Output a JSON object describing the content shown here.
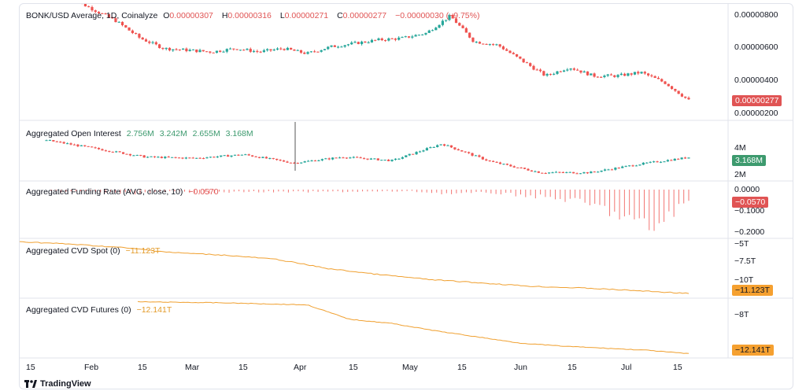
{
  "main_legend": {
    "symbol": "BONK/USD Average, 1D, Coinalyze",
    "O_label": "O",
    "O": "0.00000307",
    "H_label": "H",
    "H": "0.00000316",
    "L_label": "L",
    "L": "0.00000271",
    "C_label": "C",
    "C": "0.00000277",
    "change": "−0.00000030 (−9.75%)"
  },
  "oi_legend": {
    "title": "Aggregated Open Interest",
    "v1": "2.756M",
    "v2": "3.242M",
    "v3": "2.655M",
    "v4": "3.168M"
  },
  "fr_legend": {
    "title": "Aggregated Funding Rate (AVG, close, 10)",
    "value": "−0.0570"
  },
  "cvd_spot_legend": {
    "title": "Aggregated CVD Spot (0)",
    "value": "−11.123T"
  },
  "cvd_fut_legend": {
    "title": "Aggregated CVD Futures (0)",
    "value": "−12.141T"
  },
  "axes": {
    "price": [
      "0.00000800",
      "0.00000600",
      "0.00000400",
      "0.00000200"
    ],
    "price_badge": "0.00000277",
    "oi": [
      "4M",
      "2M"
    ],
    "oi_badge": "3.168M",
    "fr": [
      "0.0000",
      "−0.1000",
      "−0.2000"
    ],
    "fr_badge": "−0.0570",
    "cvd_spot": [
      "−5T",
      "−7.5T",
      "−10T"
    ],
    "cvd_spot_badge": "−11.123T",
    "cvd_fut": [
      "−8T"
    ],
    "cvd_fut_badge": "−12.141T"
  },
  "time_axis": [
    "15",
    "Feb",
    "15",
    "Mar",
    "15",
    "Apr",
    "15",
    "May",
    "15",
    "Jun",
    "15",
    "Jul",
    "15"
  ],
  "brand": "TradingView",
  "colors": {
    "up": "#26a69a",
    "down": "#ef5350",
    "cvd": "#f0a030",
    "badge_red": "#e05454",
    "badge_green": "#3d9a6e",
    "badge_orange": "#f5a030"
  },
  "chart_data": [
    {
      "type": "candlestick",
      "title": "BONK/USD Average, 1D, Coinalyze",
      "x": [
        "Jan 20",
        "Jan 27",
        "Feb 3",
        "Feb 10",
        "Feb 17",
        "Feb 24",
        "Mar 2",
        "Mar 9",
        "Mar 16",
        "Mar 23",
        "Mar 30",
        "Apr 6",
        "Apr 13",
        "Apr 20",
        "Apr 27",
        "May 4",
        "May 11",
        "May 18",
        "May 25",
        "Jun 1",
        "Jun 8",
        "Jun 15",
        "Jun 22",
        "Jun 29",
        "Jul 6",
        "Jul 13",
        "Jul 18"
      ],
      "close": [
        8.8e-06,
        8.1e-06,
        7.4e-06,
        6.4e-06,
        5.8e-06,
        5.7e-06,
        5.6e-06,
        5.8e-06,
        5.6e-06,
        5.8e-06,
        5.5e-06,
        5.9e-06,
        6.1e-06,
        6.3e-06,
        6.4e-06,
        6.7e-06,
        7.7e-06,
        6.2e-06,
        6e-06,
        5.1e-06,
        4.2e-06,
        4.7e-06,
        4.2e-06,
        4.2e-06,
        4.4e-06,
        3.8e-06,
        2.77e-06
      ],
      "ylim": [
        1.6e-06,
        8.4e-06
      ]
    },
    {
      "type": "candlestick",
      "title": "Aggregated Open Interest",
      "x": [
        "Jan 20",
        "Feb 3",
        "Feb 17",
        "Mar 2",
        "Mar 16",
        "Mar 30",
        "Apr 13",
        "Apr 27",
        "May 11",
        "May 25",
        "Jun 8",
        "Jun 22",
        "Jul 6",
        "Jul 18"
      ],
      "values": [
        4.6,
        3.9,
        3.2,
        3.1,
        3.4,
        2.7,
        3.2,
        2.9,
        4.3,
        2.8,
        1.9,
        1.9,
        2.6,
        3.168
      ],
      "unit": "M"
    },
    {
      "type": "bar",
      "title": "Aggregated Funding Rate (AVG, close, 10)",
      "values": [
        -0.01,
        -0.01,
        -0.02,
        -0.01,
        -0.015,
        -0.01,
        -0.012,
        -0.01,
        -0.01,
        -0.008,
        -0.02,
        -0.015,
        -0.03,
        -0.05,
        -0.1,
        -0.2,
        -0.057
      ]
    },
    {
      "type": "line",
      "title": "Aggregated CVD Spot (0)",
      "x": [
        "Jan 15",
        "Feb 1",
        "Feb 15",
        "Mar 1",
        "Mar 15",
        "Apr 1",
        "Apr 15",
        "May 1",
        "May 15",
        "Jun 1",
        "Jun 15",
        "Jul 1",
        "Jul 10",
        "Jul 18"
      ],
      "values": [
        -5.0,
        -5.3,
        -5.7,
        -6.3,
        -6.6,
        -7.1,
        -8.2,
        -8.9,
        -9.5,
        -9.9,
        -10.3,
        -10.5,
        -10.8,
        -11.123
      ],
      "unit": "T"
    },
    {
      "type": "line",
      "title": "Aggregated CVD Futures (0)",
      "x": [
        "Feb 1",
        "Feb 15",
        "Mar 1",
        "Mar 15",
        "Mar 30",
        "Apr 1",
        "Apr 15",
        "May 1",
        "May 15",
        "Jun 1",
        "Jun 15",
        "Jul 1",
        "Jul 10",
        "Jul 18"
      ],
      "values": [
        -7.1,
        -7.15,
        -7.2,
        -7.3,
        -7.4,
        -8.8,
        -9.2,
        -9.9,
        -10.5,
        -11.1,
        -11.4,
        -11.6,
        -11.8,
        -12.141
      ],
      "unit": "T"
    }
  ]
}
